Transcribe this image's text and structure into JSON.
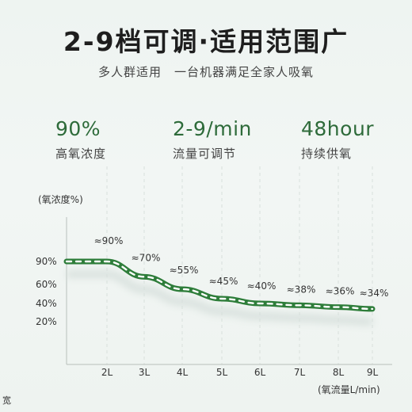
{
  "header": {
    "title": "2-9档可调·适用范围广",
    "subtitle": "多人群适用　一台机器满足全家人吸氧"
  },
  "stats": [
    {
      "value": "90%",
      "label": "高氧浓度"
    },
    {
      "value": "2-9/min",
      "label": "流量可调节"
    },
    {
      "value": "48hour",
      "label": "持续供氧"
    }
  ],
  "chart_data": {
    "type": "line",
    "ylabel": "(氧浓度%)",
    "xlabel": "(氧流量L/min)",
    "x": [
      "2L",
      "3L",
      "4L",
      "5L",
      "6L",
      "7L",
      "8L",
      "9L"
    ],
    "y_ticks": [
      "90%",
      "60%",
      "40%",
      "20%"
    ],
    "series": [
      {
        "values": [
          90,
          70,
          55,
          45,
          40,
          38,
          36,
          34
        ]
      }
    ],
    "data_labels": [
      "≈90%",
      "≈70%",
      "≈55%",
      "≈45%",
      "≈40%",
      "≈38%",
      "≈36%",
      "≈34%"
    ],
    "grid": "vertical dashed",
    "colors": {
      "line": "#2e7d3a",
      "line_dash": "#ffffff",
      "shadow": "#dbe3e0",
      "text_accent": "#2e6b3a"
    }
  },
  "footer": {
    "corner_text": "宽"
  }
}
